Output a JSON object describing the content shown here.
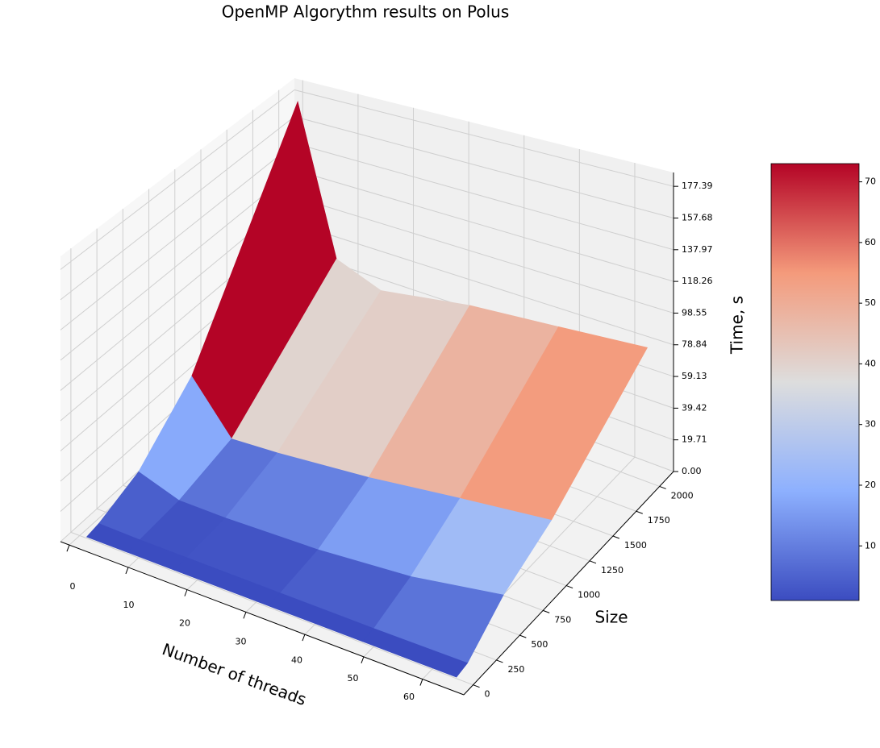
{
  "chart_data": {
    "type": "surface",
    "title": "OpenMP Algorythm results on Polus",
    "x_label": "Number of threads",
    "y_label": "Size",
    "z_label": "Time, s",
    "colormap": "coolwarm",
    "x": [
      1,
      8,
      16,
      32,
      48,
      64
    ],
    "y": [
      10,
      128,
      512,
      1024,
      2048
    ],
    "values": [
      [
        0.01,
        0.01,
        0.01,
        0.01,
        0.01,
        0.01
      ],
      [
        1.5,
        1,
        1,
        1,
        1,
        1.5
      ],
      [
        12,
        3,
        3,
        5,
        10,
        20
      ],
      [
        45,
        12,
        14,
        20,
        28,
        35
      ],
      [
        177.39,
        72,
        60,
        70,
        75,
        80
      ]
    ],
    "xlim": [
      -1.5,
      67
    ],
    "ylim": [
      -100,
      2150
    ],
    "zlim": [
      0,
      186
    ],
    "xticks": [
      0,
      10,
      20,
      30,
      40,
      50,
      60
    ],
    "yticks": [
      0,
      250,
      500,
      750,
      1000,
      1250,
      1500,
      1750,
      2000
    ],
    "zticks": [
      {
        "value": 0,
        "label": "0.00"
      },
      {
        "value": 19.71,
        "label": "19.71"
      },
      {
        "value": 39.42,
        "label": "39.42"
      },
      {
        "value": 59.13,
        "label": "59.13"
      },
      {
        "value": 78.84,
        "label": "78.84"
      },
      {
        "value": 98.55,
        "label": "98.55"
      },
      {
        "value": 118.26,
        "label": "118.26"
      },
      {
        "value": 137.97,
        "label": "137.97"
      },
      {
        "value": 157.68,
        "label": "157.68"
      },
      {
        "value": 177.39,
        "label": "177.39"
      }
    ],
    "clim": [
      1,
      73
    ],
    "colorbar_ticks": [
      10,
      20,
      30,
      40,
      50,
      60,
      70
    ]
  }
}
